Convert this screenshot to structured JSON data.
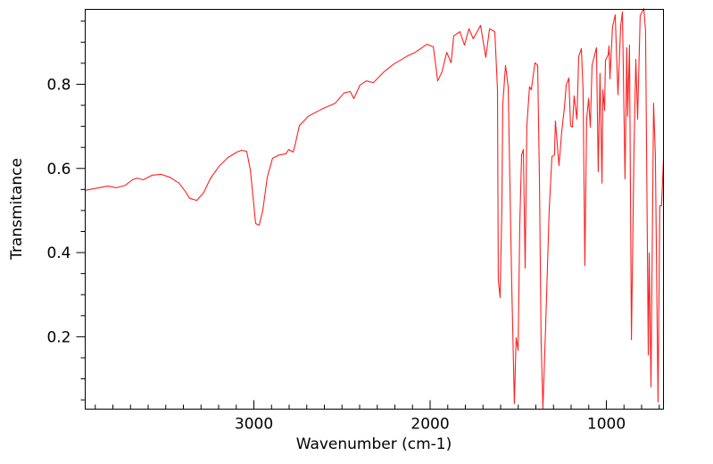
{
  "chart_data": {
    "type": "line",
    "title": "",
    "xlabel": "Wavenumber (cm-1)",
    "ylabel": "Transmitance",
    "xlim": [
      3957,
      676
    ],
    "ylim": [
      0.028,
      0.978
    ],
    "x_reversed": true,
    "grid": false,
    "x_ticks": [
      3000,
      2000,
      1000
    ],
    "x_tick_labels": [
      "3000",
      "2000",
      "1000"
    ],
    "x_minor_step": 100,
    "y_ticks": [
      0.2,
      0.4,
      0.6,
      0.8
    ],
    "y_tick_labels": [
      "0.2",
      "0.4",
      "0.6",
      "0.8"
    ],
    "y_minor_step": 0.05,
    "series": [
      {
        "name": "spectrum",
        "color": "#ff2020",
        "x": [
          3957,
          3881,
          3830,
          3780,
          3729,
          3689,
          3663,
          3628,
          3577,
          3527,
          3476,
          3425,
          3390,
          3365,
          3324,
          3284,
          3248,
          3198,
          3147,
          3096,
          3071,
          3041,
          3020,
          3005,
          2990,
          2970,
          2950,
          2924,
          2894,
          2858,
          2818,
          2803,
          2777,
          2767,
          2742,
          2691,
          2615,
          2539,
          2489,
          2453,
          2433,
          2398,
          2362,
          2322,
          2261,
          2210,
          2134,
          2084,
          2018,
          1982,
          1957,
          1932,
          1906,
          1881,
          1866,
          1831,
          1805,
          1780,
          1755,
          1714,
          1684,
          1663,
          1633,
          1618,
          1613,
          1603,
          1593,
          1588,
          1572,
          1557,
          1542,
          1537,
          1522,
          1512,
          1501,
          1491,
          1481,
          1471,
          1461,
          1451,
          1436,
          1426,
          1405,
          1390,
          1380,
          1370,
          1360,
          1345,
          1324,
          1309,
          1294,
          1289,
          1269,
          1253,
          1238,
          1228,
          1213,
          1203,
          1193,
          1183,
          1167,
          1157,
          1142,
          1132,
          1122,
          1112,
          1101,
          1091,
          1081,
          1056,
          1046,
          1036,
          1025,
          1020,
          1010,
          1005,
          990,
          985,
          980,
          965,
          950,
          934,
          919,
          909,
          894,
          884,
          879,
          869,
          858,
          843,
          833,
          823,
          808,
          788,
          778,
          762,
          757,
          747,
          732,
          722,
          707,
          697,
          687,
          676
        ],
        "y": [
          0.548,
          0.554,
          0.558,
          0.554,
          0.56,
          0.573,
          0.577,
          0.573,
          0.584,
          0.586,
          0.579,
          0.565,
          0.546,
          0.529,
          0.524,
          0.543,
          0.575,
          0.605,
          0.626,
          0.639,
          0.643,
          0.641,
          0.596,
          0.533,
          0.469,
          0.465,
          0.499,
          0.579,
          0.624,
          0.632,
          0.635,
          0.645,
          0.639,
          0.654,
          0.702,
          0.724,
          0.741,
          0.755,
          0.779,
          0.783,
          0.766,
          0.798,
          0.808,
          0.804,
          0.83,
          0.847,
          0.866,
          0.876,
          0.895,
          0.889,
          0.808,
          0.83,
          0.876,
          0.851,
          0.915,
          0.925,
          0.893,
          0.932,
          0.908,
          0.94,
          0.864,
          0.932,
          0.925,
          0.787,
          0.335,
          0.293,
          0.505,
          0.751,
          0.845,
          0.794,
          0.433,
          0.321,
          0.041,
          0.198,
          0.168,
          0.469,
          0.632,
          0.645,
          0.363,
          0.702,
          0.794,
          0.787,
          0.851,
          0.845,
          0.575,
          0.187,
          0.03,
          0.221,
          0.505,
          0.628,
          0.632,
          0.713,
          0.607,
          0.688,
          0.745,
          0.798,
          0.815,
          0.702,
          0.698,
          0.772,
          0.717,
          0.866,
          0.885,
          0.787,
          0.369,
          0.717,
          0.766,
          0.698,
          0.845,
          0.887,
          0.592,
          0.826,
          0.565,
          0.787,
          0.738,
          0.857,
          0.87,
          0.891,
          0.813,
          0.936,
          0.965,
          0.775,
          0.938,
          0.972,
          0.575,
          0.887,
          0.724,
          0.893,
          0.193,
          0.645,
          0.859,
          0.717,
          0.963,
          0.98,
          0.929,
          0.157,
          0.399,
          0.081,
          0.755,
          0.632,
          0.045,
          0.511,
          0.511,
          0.622
        ]
      }
    ]
  }
}
